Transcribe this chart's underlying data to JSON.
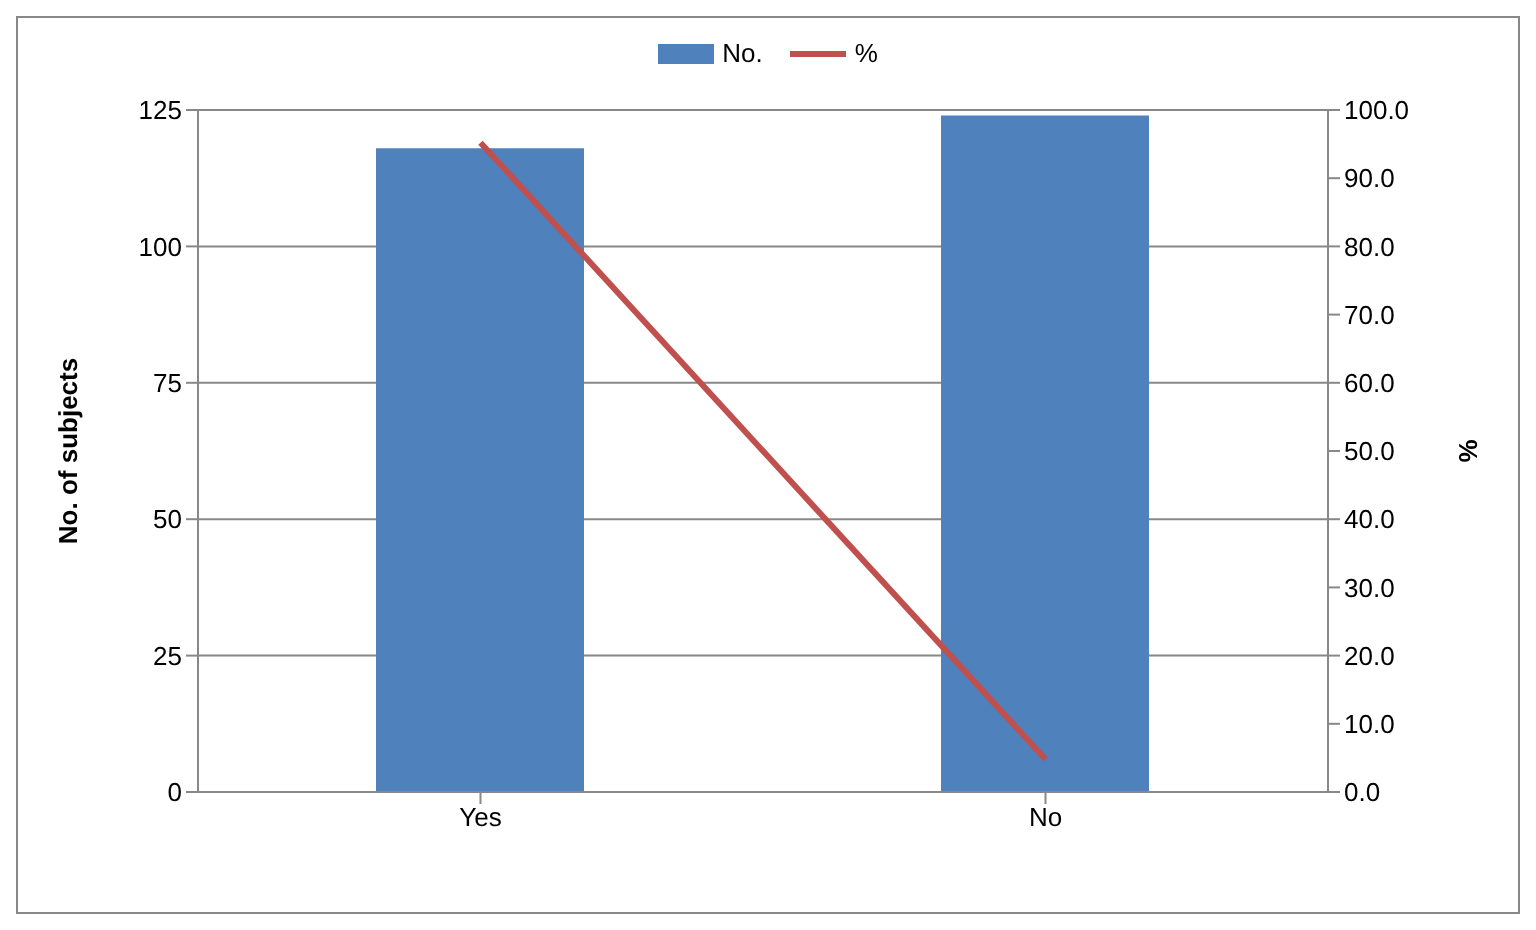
{
  "chart_data": {
    "type": "bar",
    "categories": [
      "Yes",
      "No"
    ],
    "series": [
      {
        "name": "No.",
        "color": "#4f81bd",
        "values": [
          118,
          124
        ]
      },
      {
        "name": "%",
        "type": "line",
        "axis": "y2",
        "color": "#c0504d",
        "values": [
          95.2,
          4.8
        ]
      }
    ],
    "ylabel": "No. of subjects",
    "y2label": "%",
    "ylim": [
      0,
      125
    ],
    "yticks": [
      0,
      25,
      50,
      75,
      100,
      125
    ],
    "y2lim": [
      0,
      100
    ],
    "y2ticks": [
      {
        "value": 0,
        "label": "0.0"
      },
      {
        "value": 10,
        "label": "10.0"
      },
      {
        "value": 20,
        "label": "20.0"
      },
      {
        "value": 30,
        "label": "30.0"
      },
      {
        "value": 40,
        "label": "40.0"
      },
      {
        "value": 50,
        "label": "50.0"
      },
      {
        "value": 60,
        "label": "60.0"
      },
      {
        "value": 70,
        "label": "70.0"
      },
      {
        "value": 80,
        "label": "80.0"
      },
      {
        "value": 90,
        "label": "90.0"
      },
      {
        "value": 100,
        "label": "100.0"
      }
    ],
    "grid": "y",
    "legend": "top",
    "marker": "none"
  }
}
